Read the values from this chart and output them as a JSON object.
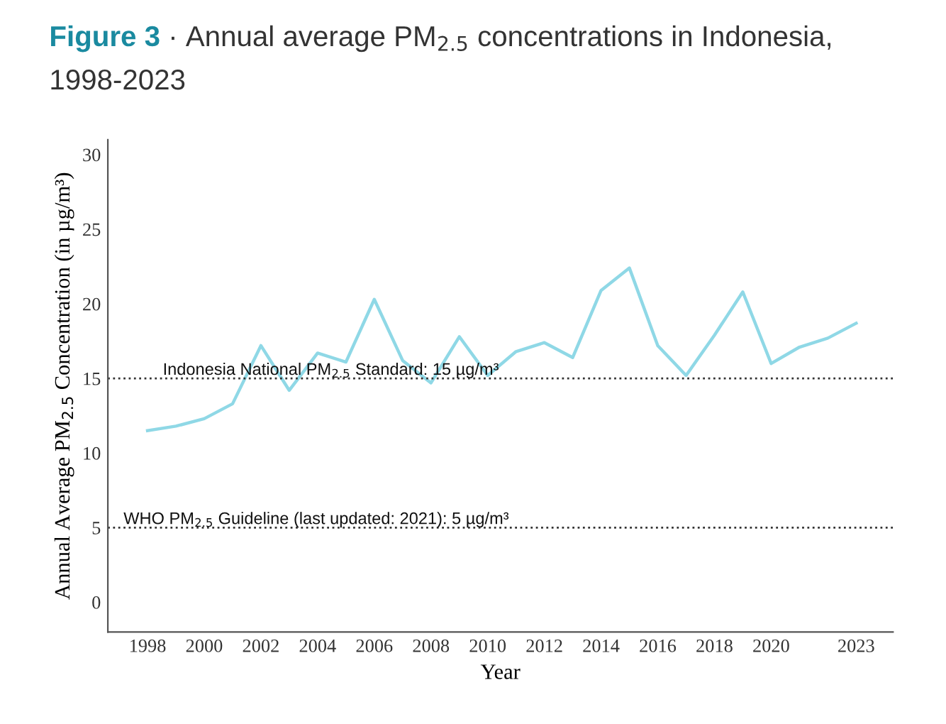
{
  "chart_data": {
    "type": "line",
    "title": [
      "Figure 3",
      " · Annual average PM$_{2.5}$ concentrations in Indonesia,\n1998-2023"
    ],
    "xlabel": "Year",
    "ylabel": "Annual Average PM$_{2.5}$ Concentration (in µg/m³)",
    "x": [
      1998,
      1999,
      2000,
      2001,
      2002,
      2003,
      2004,
      2005,
      2006,
      2007,
      2008,
      2009,
      2010,
      2011,
      2012,
      2013,
      2014,
      2015,
      2016,
      2017,
      2018,
      2019,
      2020,
      2021,
      2022,
      2023
    ],
    "series": [
      {
        "color": "#8fd8e6",
        "values": [
          11.5,
          11.8,
          12.3,
          13.3,
          17.2,
          14.2,
          16.7,
          16.1,
          20.3,
          16.2,
          14.7,
          17.8,
          15.2,
          16.8,
          17.4,
          16.4,
          20.9,
          22.4,
          17.2,
          15.2,
          17.9,
          20.8,
          16.0,
          17.1,
          17.7,
          18.7
        ]
      }
    ],
    "xlim": [
      1996.6,
      2024.3
    ],
    "ylim": [
      -2,
      31
    ],
    "xticks": [
      1998,
      2000,
      2002,
      2004,
      2006,
      2008,
      2010,
      2012,
      2014,
      2016,
      2018,
      2020,
      2023
    ],
    "yticks": [
      0,
      5,
      10,
      15,
      20,
      25,
      30
    ],
    "ref_lines": [
      {
        "axis": "y",
        "value": 15,
        "label": "Indonesia National PM$_{2.5}$ Standard: 15 µg/m³",
        "color": "#333333",
        "line_style": "dotted"
      },
      {
        "axis": "y",
        "value": 5,
        "label": "WHO PM$_{2.5}$ Guideline (last updated: 2021): 5 µg/m³",
        "color": "#333333",
        "line_style": "dotted"
      }
    ],
    "grid": false,
    "legend": false,
    "marker": "none",
    "line_style": "solid"
  }
}
